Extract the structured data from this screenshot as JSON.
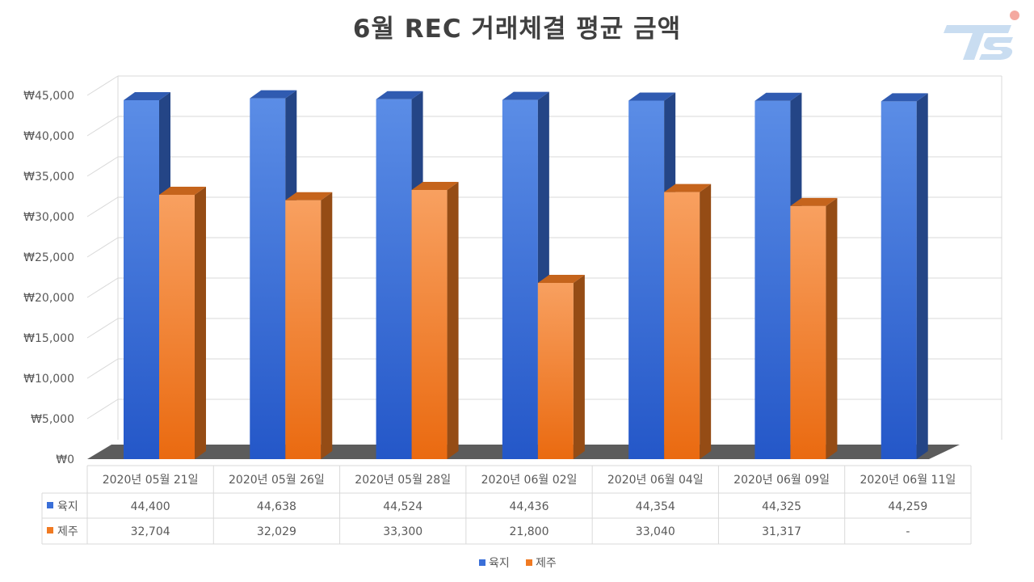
{
  "chart_data": {
    "type": "bar",
    "title": "6월 REC 거래체결 평균 금액",
    "categories": [
      "2020년 05월 21일",
      "2020년 05월 26일",
      "2020년 05월 28일",
      "2020년 06월 02일",
      "2020년 06월 04일",
      "2020년 06월 09일",
      "2020년 06월 11일"
    ],
    "series": [
      {
        "name": "육지",
        "color": "#3A6FD8",
        "values": [
          44400,
          44638,
          44524,
          44436,
          44354,
          44325,
          44259
        ],
        "labels": [
          "44,400",
          "44,638",
          "44,524",
          "44,436",
          "44,354",
          "44,325",
          "44,259"
        ]
      },
      {
        "name": "제주",
        "color": "#F07A22",
        "values": [
          32704,
          32029,
          33300,
          21800,
          33040,
          31317,
          null
        ],
        "labels": [
          "32,704",
          "32,029",
          "33,300",
          "21,800",
          "33,040",
          "31,317",
          "-"
        ]
      }
    ],
    "ylim": [
      0,
      45000
    ],
    "yticks": [
      0,
      5000,
      10000,
      15000,
      20000,
      25000,
      30000,
      35000,
      40000,
      45000
    ],
    "ytick_labels": [
      "₩0",
      "₩5,000",
      "₩10,000",
      "₩15,000",
      "₩20,000",
      "₩25,000",
      "₩30,000",
      "₩35,000",
      "₩40,000",
      "₩45,000"
    ],
    "grid": true,
    "legend": "bottom",
    "data_table": true
  }
}
